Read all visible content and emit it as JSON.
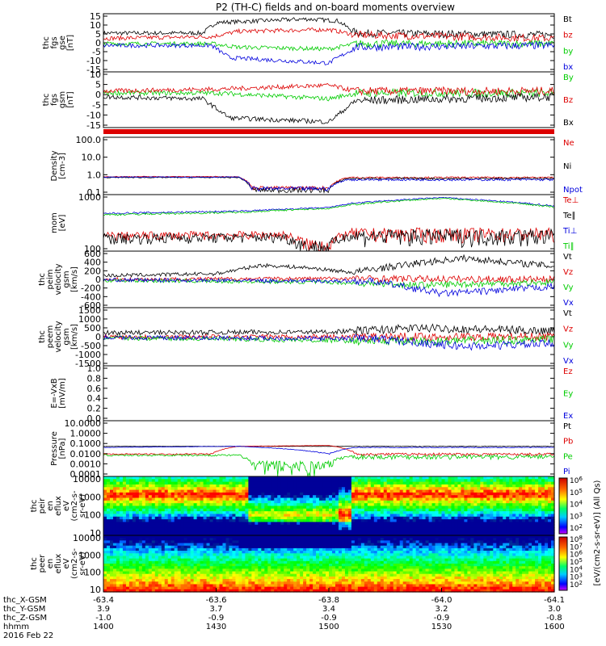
{
  "title": "P2 (TH-C) fields and on-board moments overview",
  "colors": {
    "black": "#000000",
    "red": "#dd0000",
    "green": "#00cc00",
    "blue": "#0000dd"
  },
  "x_axis": {
    "tick_hhmm": [
      "1400",
      "1430",
      "1500",
      "1530",
      "1600"
    ],
    "rows": [
      {
        "label": "thc_X-GSM",
        "values": [
          "-63.4",
          "-63.6",
          "-63.8",
          "-64.0",
          "-64.1"
        ]
      },
      {
        "label": "thc_Y-GSM",
        "values": [
          "3.9",
          "3.7",
          "3.4",
          "3.2",
          "3.0"
        ]
      },
      {
        "label": "thc_Z-GSM",
        "values": [
          "-1.0",
          "-0.9",
          "-0.9",
          "-0.9",
          "-0.8"
        ]
      },
      {
        "label": "hhmm",
        "values": [
          "1400",
          "1430",
          "1500",
          "1530",
          "1600"
        ]
      }
    ],
    "date": "2016 Feb 22"
  },
  "spectro_colorbar": {
    "label": "[eV/(cm2-s-sr-eV)] (All Qs)",
    "top_ticks": [
      "10^6",
      "10^5",
      "10^4",
      "10^3",
      "10^2"
    ],
    "bottom_ticks": [
      "10^8",
      "10^7",
      "10^6",
      "10^5",
      "10^4",
      "10^3",
      "10^2"
    ]
  },
  "chart_data": [
    {
      "id": "fgs_gse",
      "type": "line",
      "ylabel": [
        "thc",
        "fgs",
        "gse",
        "[nT]"
      ],
      "yticks": [
        "15",
        "10",
        "5",
        "0",
        "-5",
        "-10",
        "-15"
      ],
      "ylim": [
        -17,
        16
      ],
      "series": [
        {
          "name": "Bt",
          "color": "black"
        },
        {
          "name": "bz",
          "color": "red"
        },
        {
          "name": "by",
          "color": "green"
        },
        {
          "name": "bx",
          "color": "blue"
        }
      ]
    },
    {
      "id": "fgs_gsm",
      "type": "line",
      "ylabel": [
        "thc",
        "fgs",
        "gsm",
        "[nT]"
      ],
      "yticks": [
        "10",
        "5",
        "0",
        "-5",
        "-10",
        "-15"
      ],
      "ylim": [
        -18,
        11
      ],
      "series": [
        {
          "name": "By",
          "color": "green"
        },
        {
          "name": "Bz",
          "color": "red"
        },
        {
          "name": "Bx",
          "color": "black"
        }
      ]
    },
    {
      "id": "density",
      "type": "line",
      "scale": "log",
      "ylabel": [
        "Density",
        "[cm-3]"
      ],
      "yticks": [
        "100.0",
        "10.0",
        "1.0",
        "0.1"
      ],
      "ylim": [
        0.08,
        180
      ],
      "series": [
        {
          "name": "Ne",
          "color": "red"
        },
        {
          "name": "Ni",
          "color": "black"
        },
        {
          "name": "Npot",
          "color": "blue"
        }
      ]
    },
    {
      "id": "temperature",
      "type": "line",
      "scale": "log",
      "ylabel": [
        "mom",
        "[eV]"
      ],
      "yticks": [
        "1000",
        "100"
      ],
      "ylim": [
        45,
        2200
      ],
      "series": [
        {
          "name": "Te⊥",
          "color": "red"
        },
        {
          "name": "Te∥",
          "color": "black"
        },
        {
          "name": "Ti⊥",
          "color": "blue"
        },
        {
          "name": "Ti∥",
          "color": "green"
        }
      ]
    },
    {
      "id": "peim_vel",
      "type": "line",
      "ylabel": [
        "thc",
        "peim",
        "velocity",
        "gsm",
        "[km/s]"
      ],
      "yticks": [
        "600",
        "400",
        "200",
        "0",
        "-200",
        "-400",
        "-600"
      ],
      "ylim": [
        -600,
        600
      ],
      "series": [
        {
          "name": "Vt",
          "color": "black"
        },
        {
          "name": "Vz",
          "color": "red"
        },
        {
          "name": "Vy",
          "color": "green"
        },
        {
          "name": "Vx",
          "color": "blue"
        }
      ]
    },
    {
      "id": "peem_vel",
      "type": "line",
      "ylabel": [
        "thc",
        "peem",
        "velocity",
        "gsm",
        "[km/s]"
      ],
      "yticks": [
        "1500",
        "1000",
        "500",
        "0",
        "-500",
        "-1000",
        "-1500"
      ],
      "ylim": [
        -1500,
        1500
      ],
      "series": [
        {
          "name": "Vt",
          "color": "black"
        },
        {
          "name": "Vz",
          "color": "red"
        },
        {
          "name": "Vy",
          "color": "green"
        },
        {
          "name": "Vx",
          "color": "blue"
        }
      ]
    },
    {
      "id": "efield",
      "type": "line",
      "ylabel": [
        "E=-VxB",
        "[mV/m]"
      ],
      "yticks": [
        "1.0",
        "0.8",
        "0.6",
        "0.4",
        "0.2",
        "0.0"
      ],
      "ylim": [
        0,
        1
      ],
      "series": [
        {
          "name": "Ez",
          "color": "red"
        },
        {
          "name": "Ey",
          "color": "green"
        },
        {
          "name": "Ex",
          "color": "blue"
        }
      ]
    },
    {
      "id": "pressure",
      "type": "line",
      "scale": "log",
      "ylabel": [
        "Pressure",
        "[nPa]"
      ],
      "yticks": [
        "10.0000",
        "1.0000",
        "0.1000",
        "0.0100",
        "0.0010",
        "0.0001"
      ],
      "ylim": [
        0.0001,
        10
      ],
      "series": [
        {
          "name": "Pt",
          "color": "black"
        },
        {
          "name": "Pb",
          "color": "red"
        },
        {
          "name": "Pe",
          "color": "green"
        },
        {
          "name": "Pi",
          "color": "blue"
        }
      ]
    },
    {
      "id": "peir",
      "type": "heatmap",
      "ylabel": [
        "thc",
        "peir",
        "en",
        "eflux",
        "eV",
        "(cm2-s-",
        "sr-eV)"
      ],
      "yticks": [
        "10000",
        "1000",
        "100",
        "10"
      ]
    },
    {
      "id": "peer",
      "type": "heatmap",
      "ylabel": [
        "thc",
        "peer",
        "en",
        "eflux",
        "eV",
        "(cm2-s-",
        "sr-eV)"
      ],
      "yticks": [
        "10000",
        "1000",
        "100",
        "10"
      ]
    }
  ]
}
